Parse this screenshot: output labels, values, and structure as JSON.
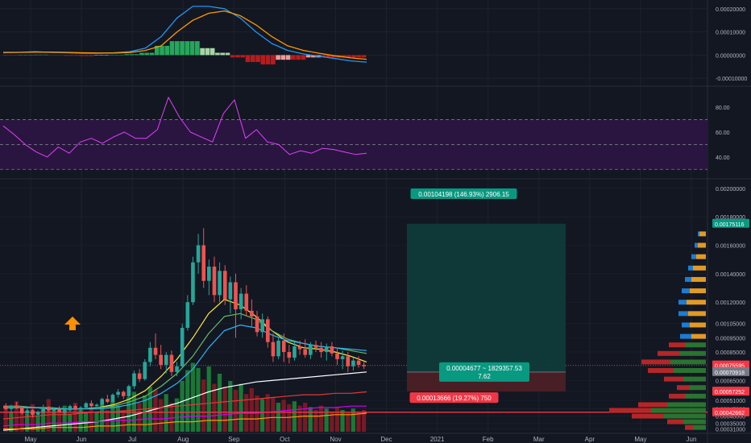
{
  "colors": {
    "background": "#131722",
    "grid": "#1e222d",
    "up": "#26a69a",
    "down": "#ef5350",
    "hist_up_strong": "#26a65b",
    "hist_up_weak": "#a5d6a7",
    "hist_down_strong": "#b71c1c",
    "hist_down_weak": "#ef9a9a",
    "macd": "#2196f3",
    "signal": "#ff9800",
    "rsi": "#e040fb",
    "rsi_band": "#2a1540",
    "ema_yellow": "#ffeb3b",
    "ema_green": "#66bb6a",
    "ema_blue": "#29b6f6",
    "ema_white": "#ffffff",
    "ema_red": "#e53935",
    "ema_magenta": "#d500f9",
    "ema_orange": "#ff9800",
    "hline": "#f23645",
    "target_zone": "#0f3b3a",
    "stop_zone": "#4a2025",
    "arrow": "#ff8f00"
  },
  "time_axis": {
    "labels": [
      "May",
      "Jun",
      "Jul",
      "Aug",
      "Sep",
      "Oct",
      "Nov",
      "Dec",
      "2021",
      "Feb",
      "Mar",
      "Apr",
      "May",
      "Jun"
    ]
  },
  "chart_data": [
    {
      "type": "line",
      "indicator": "MACD",
      "y_ticks": [
        "0.00020000",
        "0.00010000",
        "0.00000000",
        "-0.00010000"
      ],
      "ylim": [
        -0.00012,
        0.00022
      ],
      "series": [
        {
          "values": [
            1e-05,
            1.2e-05,
            1.5e-05,
            1.2e-05,
            1e-05,
            8e-06,
            8e-06,
            1e-05,
            1.5e-05,
            3e-05,
            8e-05,
            0.00016,
            0.00021,
            0.00021,
            0.0002,
            0.00016,
            0.0001,
            5e-05,
            2e-05,
            5e-06,
            -5e-06,
            -1.5e-05,
            -2.5e-05,
            -3e-05
          ]
        },
        {
          "values": [
            1.2e-05,
            1.2e-05,
            1.3e-05,
            1.3e-05,
            1.2e-05,
            1e-05,
            9e-06,
            9e-06,
            1.1e-05,
            2e-05,
            4e-05,
            0.0001,
            0.00015,
            0.00018,
            0.00019,
            0.00017,
            0.00013,
            8e-05,
            4e-05,
            2e-05,
            8e-06,
            -3e-06,
            -1.2e-05,
            -1.8e-05
          ]
        }
      ],
      "histogram": [
        -2e-06,
        1e-06,
        2e-06,
        -1e-06,
        -3e-06,
        -4e-06,
        -2e-06,
        1e-06,
        4e-06,
        1e-05,
        4e-05,
        6e-05,
        6e-05,
        3e-05,
        1e-05,
        -1e-05,
        -3e-05,
        -4e-05,
        -2e-05,
        -2e-05,
        -1e-05,
        -1e-05,
        -1e-05,
        -1e-05
      ]
    },
    {
      "type": "line",
      "indicator": "RSI",
      "y_ticks": [
        "80.00",
        "60.00",
        "40.00"
      ],
      "ylim": [
        25,
        95
      ],
      "bands": [
        30,
        70
      ],
      "values": [
        65,
        58,
        50,
        44,
        40,
        48,
        43,
        52,
        55,
        51,
        56,
        60,
        55,
        55,
        62,
        88,
        72,
        60,
        56,
        52,
        75,
        86,
        55,
        62,
        52,
        50,
        42,
        45,
        43,
        47,
        46,
        44,
        42,
        43
      ]
    },
    {
      "type": "candlestick",
      "indicator": "Price",
      "y_ticks": [
        "0.00200000",
        "0.00180000",
        "0.00160000",
        "0.00140000",
        "0.00120000",
        "0.00105000",
        "0.00095000",
        "0.00085000",
        "0.00075000",
        "0.00065000",
        "0.00057252",
        "0.00051000",
        "0.00045000",
        "0.00040000",
        "0.00035000",
        "0.00031000"
      ],
      "ylim": [
        0.00029,
        0.00205
      ],
      "price_tags": [
        {
          "label": "0.00175116",
          "value": 0.00175116,
          "color": "#089981"
        },
        {
          "label": "0.00075595",
          "value": 0.00075595,
          "color": "#f23645"
        },
        {
          "label": "0.00070918",
          "value": 0.00070918,
          "color": "#787b86"
        },
        {
          "label": "0.00057252",
          "value": 0.00057252,
          "color": "#f23645"
        },
        {
          "label": "0.00042662",
          "value": 0.00042662,
          "color": "#f23645"
        }
      ],
      "horizontal_line": 0.00042662,
      "ohlc": [
        [
          0.00047,
          0.00049,
          0.00044,
          0.00045
        ],
        [
          0.00045,
          0.00048,
          0.00043,
          0.00047
        ],
        [
          0.00047,
          0.0005,
          0.00045,
          0.00046
        ],
        [
          0.00046,
          0.00047,
          0.00041,
          0.00042
        ],
        [
          0.00042,
          0.00046,
          0.0004,
          0.00044
        ],
        [
          0.00044,
          0.00045,
          0.00039,
          0.00041
        ],
        [
          0.00041,
          0.00044,
          0.0004,
          0.00043
        ],
        [
          0.00043,
          0.00048,
          0.00042,
          0.00046
        ],
        [
          0.00046,
          0.00047,
          0.00043,
          0.00044
        ],
        [
          0.00044,
          0.00046,
          0.00042,
          0.00045
        ],
        [
          0.00045,
          0.00047,
          0.00043,
          0.00043
        ],
        [
          0.00043,
          0.00045,
          0.00041,
          0.00044
        ],
        [
          0.00044,
          0.00048,
          0.00043,
          0.00047
        ],
        [
          0.00047,
          0.00048,
          0.00044,
          0.00045
        ],
        [
          0.00045,
          0.00047,
          0.00043,
          0.00046
        ],
        [
          0.00046,
          0.0005,
          0.00045,
          0.00049
        ],
        [
          0.00049,
          0.00051,
          0.00046,
          0.00047
        ],
        [
          0.00047,
          0.00049,
          0.00045,
          0.00048
        ],
        [
          0.00048,
          0.00053,
          0.00047,
          0.00052
        ],
        [
          0.00052,
          0.00055,
          0.00049,
          0.0005
        ],
        [
          0.0005,
          0.00056,
          0.00049,
          0.00055
        ],
        [
          0.00055,
          0.00059,
          0.00053,
          0.00057
        ],
        [
          0.00057,
          0.00058,
          0.00052,
          0.00054
        ],
        [
          0.00054,
          0.00062,
          0.00053,
          0.00061
        ],
        [
          0.00061,
          0.00072,
          0.00059,
          0.0007
        ],
        [
          0.0007,
          0.00073,
          0.00064,
          0.00066
        ],
        [
          0.00066,
          0.0008,
          0.00065,
          0.00078
        ],
        [
          0.00078,
          0.00092,
          0.00075,
          0.00088
        ],
        [
          0.00088,
          0.00098,
          0.0008,
          0.00083
        ],
        [
          0.00083,
          0.0009,
          0.00073,
          0.00076
        ],
        [
          0.00076,
          0.00085,
          0.0007,
          0.00083
        ],
        [
          0.00083,
          0.00086,
          0.00068,
          0.00071
        ],
        [
          0.00071,
          0.00078,
          0.00068,
          0.00075
        ],
        [
          0.00075,
          0.00105,
          0.00074,
          0.00102
        ],
        [
          0.00102,
          0.00125,
          0.001,
          0.0012
        ],
        [
          0.0012,
          0.00152,
          0.00118,
          0.00148
        ],
        [
          0.00148,
          0.00168,
          0.0014,
          0.0016
        ],
        [
          0.0016,
          0.00172,
          0.0013,
          0.00135
        ],
        [
          0.00135,
          0.0015,
          0.00125,
          0.00145
        ],
        [
          0.00145,
          0.00152,
          0.0012,
          0.00125
        ],
        [
          0.00125,
          0.00148,
          0.0012,
          0.00142
        ],
        [
          0.00142,
          0.00146,
          0.00118,
          0.00122
        ],
        [
          0.00122,
          0.00138,
          0.00112,
          0.00134
        ],
        [
          0.00134,
          0.0014,
          0.00095,
          0.00115
        ],
        [
          0.00115,
          0.0013,
          0.00108,
          0.00126
        ],
        [
          0.00126,
          0.00132,
          0.0011,
          0.00114
        ],
        [
          0.00114,
          0.00122,
          0.00103,
          0.0011
        ],
        [
          0.0011,
          0.00114,
          0.00096,
          0.00099
        ],
        [
          0.00099,
          0.00112,
          0.00095,
          0.00108
        ],
        [
          0.00108,
          0.0011,
          0.00088,
          0.00092
        ],
        [
          0.00092,
          0.00098,
          0.00078,
          0.00082
        ],
        [
          0.00082,
          0.00095,
          0.0008,
          0.00093
        ],
        [
          0.00093,
          0.00098,
          0.00078,
          0.00085
        ],
        [
          0.00085,
          0.0009,
          0.00077,
          0.00081
        ],
        [
          0.00081,
          0.00092,
          0.00079,
          0.00089
        ],
        [
          0.00089,
          0.00093,
          0.00083,
          0.00087
        ],
        [
          0.00087,
          0.00094,
          0.00081,
          0.00083
        ],
        [
          0.00083,
          0.00092,
          0.0008,
          0.0009
        ],
        [
          0.0009,
          0.00093,
          0.00085,
          0.00088
        ],
        [
          0.00088,
          0.00092,
          0.00081,
          0.00085
        ],
        [
          0.00085,
          0.00091,
          0.00079,
          0.00089
        ],
        [
          0.00089,
          0.00092,
          0.00082,
          0.00084
        ],
        [
          0.00084,
          0.00088,
          0.00076,
          0.0008
        ],
        [
          0.0008,
          0.00086,
          0.00073,
          0.00082
        ],
        [
          0.00082,
          0.00085,
          0.00071,
          0.00075
        ],
        [
          0.00075,
          0.00081,
          0.00072,
          0.00079
        ],
        [
          0.00079,
          0.00082,
          0.00074,
          0.00076
        ],
        [
          0.00076,
          0.00078,
          0.00073,
          0.00075
        ]
      ],
      "moving_averages": [
        {
          "color_key": "ema_yellow",
          "values": [
            0.00046,
            0.00046,
            0.00046,
            0.00045,
            0.00045,
            0.00045,
            0.00046,
            0.00048,
            0.00052,
            0.00058,
            0.00068,
            0.0008,
            0.00095,
            0.00112,
            0.00122,
            0.00118,
            0.0011,
            0.001,
            0.00092,
            0.00088,
            0.00087,
            0.00085,
            0.00082,
            0.00078
          ]
        },
        {
          "color_key": "ema_green",
          "values": [
            0.00047,
            0.00047,
            0.00046,
            0.00046,
            0.00045,
            0.00045,
            0.00046,
            0.00047,
            0.0005,
            0.00054,
            0.00061,
            0.0007,
            0.00082,
            0.00098,
            0.0011,
            0.00112,
            0.00108,
            0.001,
            0.00094,
            0.00091,
            0.00089,
            0.00088,
            0.00086,
            0.00084
          ]
        },
        {
          "color_key": "ema_blue",
          "values": [
            0.00046,
            0.00046,
            0.00046,
            0.00045,
            0.00045,
            0.00045,
            0.00045,
            0.00046,
            0.00048,
            0.00051,
            0.00056,
            0.00063,
            0.00073,
            0.00088,
            0.001,
            0.00104,
            0.00102,
            0.00097,
            0.00093,
            0.00091,
            0.00089,
            0.00088,
            0.00087,
            0.00086
          ]
        },
        {
          "color_key": "ema_white",
          "values": [
            0.0003,
            0.00031,
            0.00032,
            0.00033,
            0.00034,
            0.00035,
            0.00036,
            0.00038,
            0.0004,
            0.00043,
            0.00046,
            0.00049,
            0.00053,
            0.00057,
            0.0006,
            0.00062,
            0.00064,
            0.00065,
            0.00066,
            0.00067,
            0.00068,
            0.00069,
            0.0007,
            0.00071
          ]
        },
        {
          "color_key": "ema_red",
          "values": [
            0.00038,
            0.00039,
            0.0004,
            0.00041,
            0.00041,
            0.00042,
            0.00043,
            0.00043,
            0.00044,
            0.00045,
            0.00046,
            0.00047,
            0.00048,
            0.00049,
            0.0005,
            0.00051,
            0.00052,
            0.00053,
            0.00054,
            0.00055,
            0.00055,
            0.00056,
            0.00056,
            0.00057
          ]
        },
        {
          "color_key": "ema_magenta",
          "values": [
            0.00033,
            0.00034,
            0.00034,
            0.00035,
            0.00035,
            0.00036,
            0.00036,
            0.00037,
            0.00037,
            0.00038,
            0.00038,
            0.00039,
            0.0004,
            0.0004,
            0.00041,
            0.00042,
            0.00042,
            0.00043,
            0.00044,
            0.00045,
            0.00046,
            0.00046,
            0.00047,
            0.00047
          ]
        },
        {
          "color_key": "ema_orange",
          "values": [
            0.00031,
            0.00031,
            0.00031,
            0.00032,
            0.00032,
            0.00032,
            0.00033,
            0.00033,
            0.00034,
            0.00034,
            0.00035,
            0.00036,
            0.00036,
            0.00037,
            0.00037,
            0.00038,
            0.00038,
            0.00039,
            0.00039,
            0.0004,
            0.0004,
            0.00041,
            0.00041,
            0.00042
          ]
        }
      ],
      "volume": [
        0.35,
        0.28,
        0.42,
        0.3,
        0.25,
        0.38,
        0.22,
        0.3,
        0.45,
        0.33,
        0.28,
        0.36,
        0.25,
        0.4,
        0.3,
        0.26,
        0.34,
        0.28,
        0.38,
        0.3,
        0.42,
        0.36,
        0.3,
        0.48,
        0.55,
        0.4,
        0.5,
        0.62,
        0.58,
        0.45,
        0.52,
        0.4,
        0.46,
        0.7,
        0.85,
        0.95,
        0.88,
        0.72,
        0.9,
        0.66,
        0.8,
        0.62,
        0.7,
        0.58,
        0.66,
        0.52,
        0.6,
        0.5,
        0.45,
        0.52,
        0.48,
        0.4,
        0.44,
        0.38,
        0.42,
        0.36,
        0.4,
        0.34,
        0.3,
        0.36,
        0.32,
        0.28,
        0.34,
        0.3,
        0.26,
        0.32,
        0.28,
        0.3
      ],
      "volume_profile": [
        {
          "price": 0.00168,
          "buy": 0.4,
          "sell": 0.1
        },
        {
          "price": 0.0016,
          "buy": 0.5,
          "sell": 0.2
        },
        {
          "price": 0.00152,
          "buy": 0.6,
          "sell": 0.3
        },
        {
          "price": 0.00144,
          "buy": 0.8,
          "sell": 0.3
        },
        {
          "price": 0.00136,
          "buy": 0.9,
          "sell": 0.4
        },
        {
          "price": 0.00128,
          "buy": 1.0,
          "sell": 0.5
        },
        {
          "price": 0.0012,
          "buy": 1.2,
          "sell": 0.5
        },
        {
          "price": 0.00112,
          "buy": 1.1,
          "sell": 0.6
        },
        {
          "price": 0.00104,
          "buy": 1.0,
          "sell": 0.5
        },
        {
          "price": 0.00096,
          "buy": 0.9,
          "sell": 0.7
        },
        {
          "price": 0.0009,
          "buy": 1.3,
          "sell": 1.0
        },
        {
          "price": 0.00084,
          "buy": 1.6,
          "sell": 1.4
        },
        {
          "price": 0.00078,
          "buy": 2.2,
          "sell": 1.8
        },
        {
          "price": 0.00072,
          "buy": 2.0,
          "sell": 1.6
        },
        {
          "price": 0.00066,
          "buy": 1.4,
          "sell": 1.2
        },
        {
          "price": 0.0006,
          "buy": 1.0,
          "sell": 0.8
        },
        {
          "price": 0.00054,
          "buy": 1.3,
          "sell": 1.0
        },
        {
          "price": 0.00048,
          "buy": 2.4,
          "sell": 1.8
        },
        {
          "price": 0.00044,
          "buy": 3.4,
          "sell": 2.6
        },
        {
          "price": 0.0004,
          "buy": 2.6,
          "sell": 2.0
        },
        {
          "price": 0.00036,
          "buy": 1.4,
          "sell": 1.0
        },
        {
          "price": 0.00032,
          "buy": 0.8,
          "sell": 0.5
        }
      ],
      "position": {
        "entry": 0.00070918,
        "target": 0.00175116,
        "stop": 0.00057252,
        "target_label": "0.00104198 (146.93%) 2906.15",
        "entry_label_line1": "0.00004677 ~ 1829357.53",
        "entry_label_line2": "7.62",
        "stop_label": "0.00013666 (19.27%) 750"
      }
    }
  ]
}
